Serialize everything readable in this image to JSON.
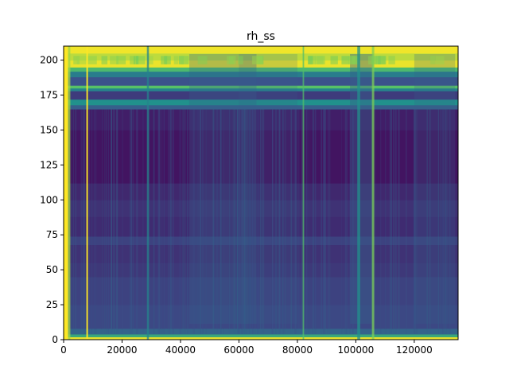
{
  "chart_data": {
    "type": "heatmap",
    "title": "rh_ss",
    "xlabel": "",
    "ylabel": "",
    "xlim": [
      0,
      135000
    ],
    "ylim": [
      0,
      210
    ],
    "x_ticks": [
      0,
      20000,
      40000,
      60000,
      80000,
      100000,
      120000
    ],
    "x_tick_labels": [
      "0",
      "20000",
      "40000",
      "60000",
      "80000",
      "100000",
      "120000"
    ],
    "y_ticks": [
      0,
      25,
      50,
      75,
      100,
      125,
      150,
      175,
      200
    ],
    "y_tick_labels": [
      "0",
      "25",
      "50",
      "75",
      "100",
      "125",
      "150",
      "175",
      "200"
    ],
    "colormap": "viridis",
    "row_bands": [
      {
        "y0": 0,
        "y1": 2,
        "level": 0.97
      },
      {
        "y0": 2,
        "y1": 4,
        "level": 0.6
      },
      {
        "y0": 4,
        "y1": 8,
        "level": 0.32
      },
      {
        "y0": 8,
        "y1": 25,
        "level": 0.22
      },
      {
        "y0": 25,
        "y1": 45,
        "level": 0.2
      },
      {
        "y0": 45,
        "y1": 55,
        "level": 0.17
      },
      {
        "y0": 55,
        "y1": 68,
        "level": 0.15
      },
      {
        "y0": 68,
        "y1": 74,
        "level": 0.2
      },
      {
        "y0": 74,
        "y1": 88,
        "level": 0.13
      },
      {
        "y0": 88,
        "y1": 100,
        "level": 0.15
      },
      {
        "y0": 100,
        "y1": 112,
        "level": 0.12
      },
      {
        "y0": 112,
        "y1": 150,
        "level": 0.06
      },
      {
        "y0": 150,
        "y1": 165,
        "level": 0.09
      },
      {
        "y0": 165,
        "y1": 168,
        "level": 0.3
      },
      {
        "y0": 168,
        "y1": 172,
        "level": 0.5
      },
      {
        "y0": 172,
        "y1": 178,
        "level": 0.18
      },
      {
        "y0": 178,
        "y1": 180,
        "level": 0.45
      },
      {
        "y0": 180,
        "y1": 182,
        "level": 0.72
      },
      {
        "y0": 182,
        "y1": 188,
        "level": 0.25
      },
      {
        "y0": 188,
        "y1": 192,
        "level": 0.42
      },
      {
        "y0": 192,
        "y1": 195,
        "level": 0.68
      },
      {
        "y0": 195,
        "y1": 200,
        "level": 0.97
      },
      {
        "y0": 200,
        "y1": 205,
        "level": 0.9
      },
      {
        "y0": 205,
        "y1": 210,
        "level": 0.98
      }
    ],
    "column_bands": [
      {
        "x0": 0,
        "x1": 1500,
        "level": 1.0
      },
      {
        "x0": 1500,
        "x1": 2300,
        "level": 0.85
      },
      {
        "x0": 7800,
        "x1": 8300,
        "level": 1.0
      },
      {
        "x0": 28500,
        "x1": 29200,
        "level": 0.45
      },
      {
        "x0": 81800,
        "x1": 82300,
        "level": 0.7
      },
      {
        "x0": 100500,
        "x1": 101500,
        "level": 0.5
      },
      {
        "x0": 105500,
        "x1": 106300,
        "level": 0.8
      }
    ],
    "column_regions": [
      {
        "x0": 43000,
        "x1": 66000,
        "delta": 0.05
      },
      {
        "x0": 60000,
        "x1": 80000,
        "delta": 0.03
      },
      {
        "x0": 98000,
        "x1": 106000,
        "delta": 0.07
      },
      {
        "x0": 120000,
        "x1": 134000,
        "delta": 0.04
      }
    ]
  }
}
